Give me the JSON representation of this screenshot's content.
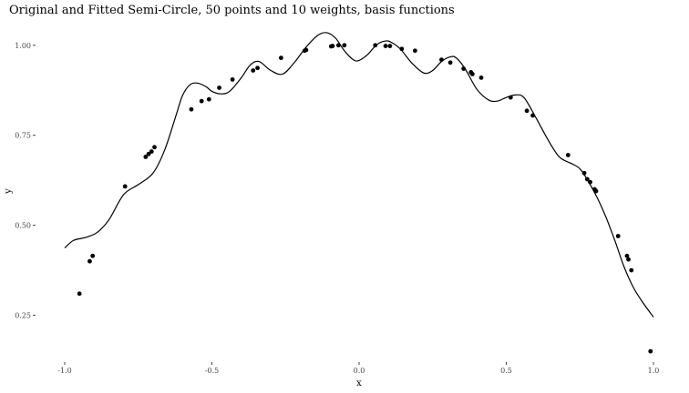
{
  "chart_data": {
    "type": "scatter",
    "title": "Original and Fitted Semi-Circle, 50 points and 10 weights, basis functions",
    "xlabel": "x",
    "ylabel": "y",
    "xlim": [
      -1.0,
      1.0
    ],
    "ylim": [
      0.12,
      1.05
    ],
    "xticks": [
      -1.0,
      -0.5,
      0.0,
      0.5,
      1.0
    ],
    "xtick_labels": [
      "-1.0",
      "-0.5",
      "0.0",
      "0.5",
      "1.0"
    ],
    "yticks": [
      0.25,
      0.5,
      0.75,
      1.0
    ],
    "ytick_labels": [
      "0.25",
      "0.50",
      "0.75",
      "1.00"
    ],
    "grid": false,
    "legend": "none",
    "series": [
      {
        "kind": "points",
        "x": [
          -0.95,
          -0.915,
          -0.905,
          -0.795,
          -0.725,
          -0.715,
          -0.705,
          -0.695,
          -0.57,
          -0.535,
          -0.51,
          -0.475,
          -0.43,
          -0.36,
          -0.345,
          -0.265,
          -0.185,
          -0.18,
          -0.095,
          -0.09,
          -0.07,
          -0.05,
          0.055,
          0.09,
          0.105,
          0.145,
          0.19,
          0.28,
          0.31,
          0.355,
          0.38,
          0.385,
          0.415,
          0.515,
          0.57,
          0.59,
          0.71,
          0.765,
          0.775,
          0.785,
          0.8,
          0.805,
          0.88,
          0.91,
          0.915,
          0.925,
          0.99
        ],
        "y": [
          0.31,
          0.4,
          0.415,
          0.608,
          0.69,
          0.698,
          0.705,
          0.717,
          0.822,
          0.845,
          0.85,
          0.882,
          0.905,
          0.93,
          0.937,
          0.965,
          0.985,
          0.987,
          0.997,
          0.998,
          1.0,
          1.0,
          1.0,
          0.998,
          0.998,
          0.99,
          0.985,
          0.96,
          0.952,
          0.935,
          0.925,
          0.92,
          0.91,
          0.855,
          0.818,
          0.805,
          0.695,
          0.645,
          0.628,
          0.62,
          0.6,
          0.595,
          0.47,
          0.415,
          0.405,
          0.375,
          0.15
        ]
      },
      {
        "kind": "line",
        "x": [
          -1.0,
          -0.97,
          -0.93,
          -0.89,
          -0.85,
          -0.8,
          -0.75,
          -0.7,
          -0.66,
          -0.62,
          -0.6,
          -0.575,
          -0.55,
          -0.52,
          -0.5,
          -0.47,
          -0.44,
          -0.4,
          -0.37,
          -0.34,
          -0.3,
          -0.26,
          -0.22,
          -0.18,
          -0.14,
          -0.11,
          -0.08,
          -0.05,
          -0.02,
          0.0,
          0.03,
          0.06,
          0.09,
          0.11,
          0.14,
          0.18,
          0.22,
          0.25,
          0.28,
          0.31,
          0.33,
          0.36,
          0.4,
          0.44,
          0.47,
          0.5,
          0.53,
          0.56,
          0.6,
          0.64,
          0.68,
          0.72,
          0.75,
          0.78,
          0.81,
          0.84,
          0.87,
          0.9,
          0.93,
          0.96,
          1.0
        ],
        "y": [
          0.437,
          0.458,
          0.466,
          0.48,
          0.515,
          0.585,
          0.613,
          0.645,
          0.71,
          0.81,
          0.86,
          0.89,
          0.895,
          0.885,
          0.872,
          0.865,
          0.872,
          0.91,
          0.945,
          0.955,
          0.93,
          0.92,
          0.952,
          0.995,
          1.028,
          1.035,
          1.02,
          0.985,
          0.96,
          0.958,
          0.975,
          1.002,
          1.012,
          1.008,
          0.99,
          0.95,
          0.923,
          0.93,
          0.955,
          0.968,
          0.965,
          0.935,
          0.878,
          0.848,
          0.845,
          0.855,
          0.862,
          0.855,
          0.8,
          0.74,
          0.69,
          0.672,
          0.657,
          0.62,
          0.575,
          0.52,
          0.455,
          0.385,
          0.33,
          0.29,
          0.245
        ]
      }
    ]
  }
}
